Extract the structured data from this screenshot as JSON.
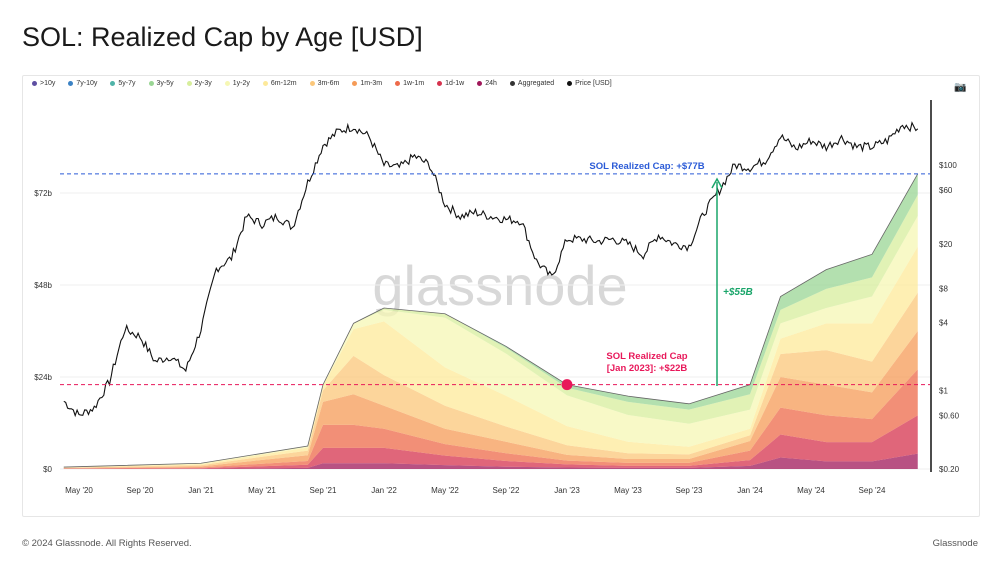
{
  "title": "SOL: Realized Cap by Age [USD]",
  "legend": [
    {
      "label": ">10y",
      "color": "#5e4fa2"
    },
    {
      "label": "7y-10y",
      "color": "#3b82c4"
    },
    {
      "label": "5y-7y",
      "color": "#4fb3a8"
    },
    {
      "label": "3y-5y",
      "color": "#99d594"
    },
    {
      "label": "2y-3y",
      "color": "#d7ee9c"
    },
    {
      "label": "1y-2y",
      "color": "#f6f7b4"
    },
    {
      "label": "6m-12m",
      "color": "#fde99a"
    },
    {
      "label": "3m-6m",
      "color": "#fbc77a"
    },
    {
      "label": "1m-3m",
      "color": "#f59b57"
    },
    {
      "label": "1w-1m",
      "color": "#ee6a4a"
    },
    {
      "label": "1d-1w",
      "color": "#d6334e"
    },
    {
      "label": "24h",
      "color": "#a0185a"
    },
    {
      "label": "Aggregated",
      "color": "#333333"
    },
    {
      "label": "Price [USD]",
      "color": "#111111"
    }
  ],
  "camera_icon": "camera-icon",
  "watermark": "glassnode",
  "footer": {
    "copyright": "© 2024 Glassnode. All Rights Reserved.",
    "brand": "Glassnode"
  },
  "chart_data": {
    "type": "area",
    "title": "SOL: Realized Cap by Age [USD]",
    "x_ticks": [
      "May '20",
      "Sep '20",
      "Jan '21",
      "May '21",
      "Sep '21",
      "Jan '22",
      "May '22",
      "Sep '22",
      "Jan '23",
      "May '23",
      "Sep '23",
      "Jan '24",
      "May '24",
      "Sep '24"
    ],
    "y_left": {
      "ticks": [
        "$0",
        "$24b",
        "$48b",
        "$72b"
      ],
      "values": [
        0,
        24,
        48,
        72
      ],
      "unit": "billion USD",
      "scale": "linear"
    },
    "y_right": {
      "ticks": [
        "$0.20",
        "$0.60",
        "$1",
        "$4",
        "$8",
        "$20",
        "$60",
        "$100"
      ],
      "values": [
        0.2,
        0.6,
        1,
        4,
        8,
        20,
        60,
        100
      ],
      "scale": "log"
    },
    "grid": true,
    "legend_placement": "top",
    "dates": [
      "2020-04",
      "2021-01",
      "2021-08",
      "2021-09",
      "2021-11",
      "2022-01",
      "2022-05",
      "2022-09",
      "2023-01",
      "2023-05",
      "2023-09",
      "2024-01",
      "2024-03",
      "2024-06",
      "2024-09",
      "2024-12"
    ],
    "series": [
      {
        "name": "24h",
        "color": "#a0185a",
        "values": [
          0.02,
          0.05,
          0.3,
          1.5,
          1.5,
          1.5,
          1,
          0.6,
          0.4,
          0.3,
          0.3,
          0.8,
          3,
          2,
          2,
          4
        ]
      },
      {
        "name": "1d-1w",
        "color": "#d6334e",
        "values": [
          0.05,
          0.15,
          0.8,
          4,
          4,
          4,
          2.5,
          1.5,
          0.8,
          0.5,
          0.5,
          1.5,
          6,
          5,
          5,
          10
        ]
      },
      {
        "name": "1w-1m",
        "color": "#ee6a4a",
        "values": [
          0.08,
          0.2,
          1,
          6,
          6,
          5,
          3,
          2,
          1,
          0.8,
          0.8,
          2.5,
          7,
          7,
          6,
          12
        ]
      },
      {
        "name": "1m-3m",
        "color": "#f59b57",
        "values": [
          0.1,
          0.3,
          1.5,
          6,
          8,
          6,
          4,
          3,
          1.5,
          1,
          1,
          2.5,
          8,
          8,
          7,
          10
        ]
      },
      {
        "name": "3m-6m",
        "color": "#fbc77a",
        "values": [
          0.1,
          0.3,
          1.2,
          3,
          10,
          8,
          6,
          4,
          2.5,
          1.5,
          1.2,
          1.5,
          6,
          9,
          8,
          10
        ]
      },
      {
        "name": "6m-12m",
        "color": "#fde99a",
        "values": [
          0.1,
          0.3,
          0.8,
          1.2,
          7,
          14,
          10,
          8,
          5,
          3,
          2,
          1.7,
          4,
          7,
          10,
          12
        ]
      },
      {
        "name": "1y-2y",
        "color": "#f6f7b4",
        "values": [
          0.05,
          0.2,
          0.4,
          0.3,
          1.5,
          3,
          13,
          11,
          8,
          7,
          6,
          5,
          4,
          4,
          7,
          8
        ]
      },
      {
        "name": "2y-3y",
        "color": "#d7ee9c",
        "values": [
          0,
          0,
          0,
          0,
          0,
          0.5,
          1,
          1.5,
          2,
          3.4,
          3.7,
          4,
          3.5,
          5,
          5,
          5.5
        ]
      },
      {
        "name": "3y-5y",
        "color": "#99d594",
        "values": [
          0,
          0,
          0,
          0,
          0,
          0,
          0,
          0.4,
          0.8,
          1.5,
          1.5,
          2.5,
          3.5,
          5,
          6,
          5.5
        ]
      }
    ],
    "price": {
      "name": "Price [USD]",
      "dates": [
        "2020-04",
        "2020-05",
        "2020-06",
        "2020-07",
        "2020-08",
        "2020-09",
        "2020-10",
        "2020-11",
        "2020-12",
        "2021-01",
        "2021-02",
        "2021-03",
        "2021-04",
        "2021-05",
        "2021-06",
        "2021-07",
        "2021-08",
        "2021-09",
        "2021-10",
        "2021-11",
        "2021-12",
        "2022-01",
        "2022-02",
        "2022-03",
        "2022-04",
        "2022-05",
        "2022-06",
        "2022-07",
        "2022-08",
        "2022-09",
        "2022-10",
        "2022-11",
        "2022-12",
        "2023-01",
        "2023-02",
        "2023-03",
        "2023-04",
        "2023-05",
        "2023-06",
        "2023-07",
        "2023-08",
        "2023-09",
        "2023-10",
        "2023-11",
        "2023-12",
        "2024-01",
        "2024-02",
        "2024-03",
        "2024-04",
        "2024-05",
        "2024-06",
        "2024-07",
        "2024-08",
        "2024-09",
        "2024-10",
        "2024-11",
        "2024-12"
      ],
      "values": [
        0.8,
        0.6,
        0.7,
        1.2,
        3.5,
        3.0,
        1.8,
        2.0,
        1.5,
        3.5,
        12,
        15,
        35,
        30,
        35,
        28,
        70,
        150,
        200,
        220,
        180,
        100,
        95,
        120,
        100,
        45,
        35,
        38,
        35,
        33,
        32,
        14,
        10,
        22,
        22,
        21,
        22,
        20,
        16,
        24,
        20,
        19,
        38,
        60,
        100,
        95,
        110,
        180,
        140,
        165,
        145,
        175,
        145,
        145,
        165,
        230,
        210
      ]
    },
    "annotations": [
      {
        "text": "SOL Realized Cap: +$77B",
        "value": 77,
        "color": "#2b5bd7"
      },
      {
        "text": "SOL Realized Cap",
        "text2": "[Jan 2023]: +$22B",
        "value": 22,
        "date": "2023-01",
        "color": "#e8185a"
      },
      {
        "text": "+$55B",
        "from": 22,
        "to": 77,
        "date": "2023-12",
        "color": "#1aa56a"
      }
    ]
  }
}
